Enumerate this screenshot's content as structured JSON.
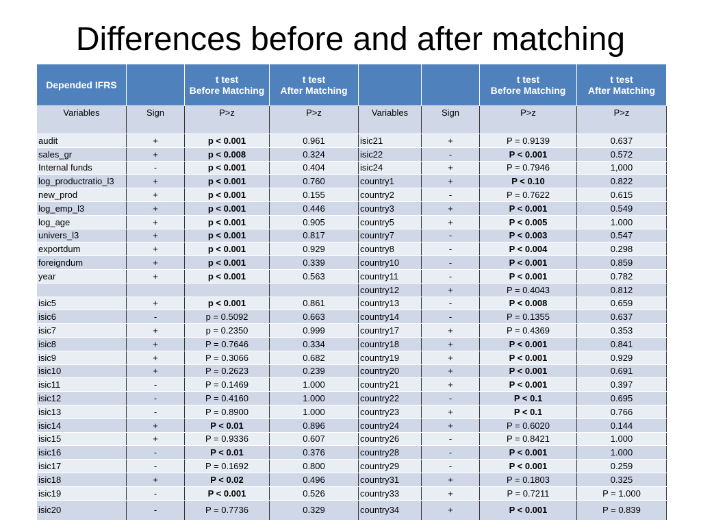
{
  "title": "Differences before and after matching",
  "table": {
    "header": [
      [
        "Depended IFRS"
      ],
      null,
      [
        "t test",
        "Before Matching"
      ],
      [
        "t test",
        "After Matching"
      ],
      null,
      null,
      [
        "t test",
        "Before Matching"
      ],
      [
        "t test",
        "After Matching"
      ]
    ],
    "subheader": [
      "Variables",
      "Sign",
      "P>z",
      "P>z",
      "Variables",
      "Sign",
      "P>z",
      "P>z"
    ],
    "rows": [
      [
        "audit",
        "+",
        "p < 0.001",
        "0.961",
        "isic21",
        "+",
        "P = 0.9139",
        "0.637"
      ],
      [
        "sales_gr",
        "+",
        "p < 0.008",
        "0.324",
        "isic22",
        "-",
        "P < 0.001",
        "0.572"
      ],
      [
        "Internal funds",
        "-",
        "p < 0.001",
        "0.404",
        "isic24",
        "+",
        "P = 0.7946",
        "1,000"
      ],
      [
        "log_productratio_l3",
        "+",
        "p < 0.001",
        "0.760",
        "country1",
        "+",
        "P < 0.10",
        "0.822"
      ],
      [
        "new_prod",
        "+",
        "p < 0.001",
        "0.155",
        "country2",
        "-",
        "P = 0.7622",
        "0.615"
      ],
      [
        "log_emp_l3",
        "+",
        "p < 0.001",
        "0.446",
        "country3",
        "+",
        "P < 0.001",
        "0.549"
      ],
      [
        "log_age",
        "+",
        "p < 0.001",
        "0.905",
        "country5",
        "+",
        "P < 0.005",
        "1.000"
      ],
      [
        "univers_l3",
        "+",
        "p < 0.001",
        "0.817",
        "country7",
        "-",
        "P < 0.003",
        "0.547"
      ],
      [
        "exportdum",
        "+",
        "p < 0.001",
        "0.929",
        "country8",
        "-",
        "P < 0.004",
        "0.298"
      ],
      [
        "foreigndum",
        "+",
        "p < 0.001",
        "0.339",
        "country10",
        "-",
        "P < 0.001",
        "0.859"
      ],
      [
        "year",
        "+",
        "p < 0.001",
        "0.563",
        "country11",
        "-",
        "P < 0.001",
        "0.782"
      ],
      [
        null,
        null,
        null,
        null,
        "country12",
        "+",
        "P = 0.4043",
        "0.812"
      ],
      [
        "isic5",
        "+",
        "p < 0.001",
        "0.861",
        "country13",
        "-",
        "P < 0.008",
        "0.659"
      ],
      [
        "isic6",
        "-",
        "p = 0.5092",
        "0.663",
        "country14",
        "-",
        "P = 0.1355",
        "0.637"
      ],
      [
        "isic7",
        "+",
        "p = 0.2350",
        "0.999",
        "country17",
        "+",
        "P = 0.4369",
        "0.353"
      ],
      [
        "isic8",
        "+",
        "P = 0.7646",
        "0.334",
        "country18",
        "+",
        "P < 0.001",
        "0.841"
      ],
      [
        "isic9",
        "+",
        "P = 0.3066",
        "0.682",
        "country19",
        "+",
        "P < 0.001",
        "0.929"
      ],
      [
        "isic10",
        "+",
        "P = 0.2623",
        "0.239",
        "country20",
        "+",
        "P < 0.001",
        "0.691"
      ],
      [
        "isic11",
        "-",
        "P = 0.1469",
        "1.000",
        "country21",
        "+",
        "P < 0.001",
        "0.397"
      ],
      [
        "isic12",
        "-",
        "P = 0.4160",
        "1.000",
        "country22",
        "-",
        "P < 0.1",
        "0.695"
      ],
      [
        "isic13",
        "-",
        "P = 0.8900",
        "1.000",
        "country23",
        "+",
        "P < 0.1",
        "0.766"
      ],
      [
        "isic14",
        "+",
        "P < 0.01",
        "0.896",
        "country24",
        "+",
        "P = 0.6020",
        "0.144"
      ],
      [
        "isic15",
        "+",
        "P = 0.9336",
        "0.607",
        "country26",
        "-",
        "P = 0.8421",
        "1.000"
      ],
      [
        "isic16",
        "-",
        "P < 0.01",
        "0.376",
        "country28",
        "-",
        "P < 0.001",
        "1.000"
      ],
      [
        "isic17",
        "-",
        "P = 0.1692",
        "0.800",
        "country29",
        "-",
        "P < 0.001",
        "0.259"
      ],
      [
        "isic18",
        "+",
        "P < 0.02",
        "0.496",
        "country31",
        "+",
        "P = 0.1803",
        "0.325"
      ],
      [
        "isic19",
        "-",
        "P < 0.001",
        "0.526",
        "country33",
        "+",
        "P = 0.7211",
        "P = 1.000"
      ],
      [
        "isic20",
        "-",
        "P = 0.7736",
        "0.329",
        "country34",
        "+",
        "P < 0.001",
        "P = 0.839"
      ]
    ]
  }
}
